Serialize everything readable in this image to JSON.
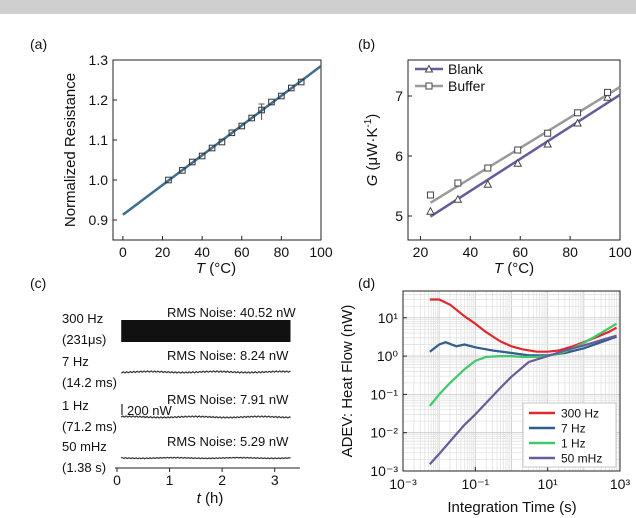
{
  "chart_data": [
    {
      "panel": "(a)",
      "type": "line",
      "xlabel": "T (°C)",
      "ylabel": "Normalized Resistance",
      "xlim": [
        -5,
        100
      ],
      "ylim": [
        0.85,
        1.3
      ],
      "xticks": [
        "0",
        "20",
        "40",
        "60",
        "80",
        "100"
      ],
      "yticks": [
        "0.9",
        "1.0",
        "1.1",
        "1.2",
        "1.3"
      ],
      "fit_line": {
        "x": [
          0,
          100
        ],
        "y": [
          0.913,
          1.285
        ],
        "color": "#3f6d8f"
      },
      "points": [
        {
          "x": 23,
          "y": 1.0
        },
        {
          "x": 30,
          "y": 1.024
        },
        {
          "x": 35,
          "y": 1.045
        },
        {
          "x": 40,
          "y": 1.06
        },
        {
          "x": 45,
          "y": 1.08
        },
        {
          "x": 50,
          "y": 1.095
        },
        {
          "x": 55,
          "y": 1.118
        },
        {
          "x": 60,
          "y": 1.135
        },
        {
          "x": 65,
          "y": 1.155
        },
        {
          "x": 70,
          "y": 1.175
        },
        {
          "x": 75,
          "y": 1.195
        },
        {
          "x": 80,
          "y": 1.21
        },
        {
          "x": 85,
          "y": 1.23
        },
        {
          "x": 90,
          "y": 1.245
        }
      ],
      "error_bar": {
        "x": 70,
        "low": 1.15,
        "high": 1.19
      }
    },
    {
      "panel": "(b)",
      "type": "scatter",
      "xlabel": "T (°C)",
      "ylabel": "G (μW·K⁻¹)",
      "xlim": [
        15,
        100
      ],
      "ylim": [
        4.6,
        7.6
      ],
      "xticks": [
        "20",
        "40",
        "60",
        "80",
        "100"
      ],
      "yticks": [
        "5",
        "6",
        "7"
      ],
      "legend_position": "top-left",
      "series": [
        {
          "name": "Blank",
          "marker": "triangle",
          "color": "#6a5a9c",
          "x": [
            24,
            35,
            47,
            59,
            71,
            83,
            95
          ],
          "y": [
            5.08,
            5.28,
            5.53,
            5.88,
            6.2,
            6.55,
            6.98
          ],
          "fit": {
            "x": [
              24,
              100
            ],
            "y": [
              4.99,
              7.02
            ]
          }
        },
        {
          "name": "Buffer",
          "marker": "square",
          "color": "#9a9a9a",
          "x": [
            24,
            35,
            47,
            59,
            71,
            83,
            95
          ],
          "y": [
            5.35,
            5.55,
            5.8,
            6.1,
            6.38,
            6.72,
            7.06
          ],
          "fit": {
            "x": [
              24,
              100
            ],
            "y": [
              5.22,
              7.15
            ]
          }
        }
      ]
    },
    {
      "panel": "(c)",
      "type": "line",
      "xlabel": "t (h)",
      "xlim": [
        0,
        3.5
      ],
      "xticks": [
        "0",
        "1",
        "2",
        "3"
      ],
      "scale_bar": "200 nW",
      "traces": [
        {
          "label": "300 Hz",
          "sublabel": "(231μs)",
          "noise": "RMS Noise: 40.52 nW",
          "amplitude": 40.52
        },
        {
          "label": "7 Hz",
          "sublabel": "(14.2 ms)",
          "noise": "RMS Noise: 8.24 nW",
          "amplitude": 8.24
        },
        {
          "label": "1 Hz",
          "sublabel": "(71.2 ms)",
          "noise": "RMS Noise: 7.91 nW",
          "amplitude": 7.91
        },
        {
          "label": "50 mHz",
          "sublabel": "(1.38 s)",
          "noise": "RMS Noise: 5.29 nW",
          "amplitude": 5.29
        }
      ]
    },
    {
      "panel": "(d)",
      "type": "line",
      "xlabel": "Integration Time (s)",
      "ylabel": "ADEV: Heat Flow (nW)",
      "xscale": "log",
      "yscale": "log",
      "xlim": [
        0.001,
        1000
      ],
      "ylim": [
        0.001,
        50
      ],
      "xticks": [
        "10⁻³",
        "10⁻¹",
        "10¹",
        "10³"
      ],
      "yticks": [
        "10⁻³",
        "10⁻²",
        "10⁻¹",
        "10⁰",
        "10¹"
      ],
      "grid": true,
      "legend_position": "bottom-right",
      "series": [
        {
          "name": "300 Hz",
          "color": "#e0282e",
          "x": [
            0.0055,
            0.01,
            0.02,
            0.05,
            0.1,
            0.2,
            0.5,
            1,
            2,
            5,
            10,
            20,
            50,
            100,
            200,
            500,
            800
          ],
          "y": [
            30,
            30,
            22,
            11,
            7,
            4.2,
            2.4,
            1.8,
            1.5,
            1.3,
            1.3,
            1.4,
            1.8,
            2.3,
            3,
            4.3,
            5.5
          ]
        },
        {
          "name": "7 Hz",
          "color": "#2f5f8a",
          "x": [
            0.0055,
            0.01,
            0.015,
            0.03,
            0.05,
            0.1,
            0.3,
            1,
            3,
            10,
            30,
            100,
            300,
            800
          ],
          "y": [
            1.3,
            2.0,
            2.3,
            1.8,
            2.0,
            1.7,
            1.4,
            1.2,
            1.05,
            1.05,
            1.2,
            1.6,
            2.3,
            3.2
          ]
        },
        {
          "name": "1 Hz",
          "color": "#3ec96b",
          "x": [
            0.0055,
            0.01,
            0.02,
            0.05,
            0.1,
            0.2,
            0.5,
            1,
            2,
            5,
            10,
            30,
            100,
            300,
            800
          ],
          "y": [
            0.05,
            0.1,
            0.2,
            0.45,
            0.75,
            0.95,
            1.0,
            1.0,
            0.95,
            0.95,
            1.0,
            1.3,
            2.2,
            4,
            7
          ]
        },
        {
          "name": "50 mHz",
          "color": "#6a5a9c",
          "x": [
            0.0055,
            0.01,
            0.05,
            0.1,
            0.5,
            1,
            3,
            10,
            30,
            100,
            300,
            800
          ],
          "y": [
            0.0015,
            0.0028,
            0.016,
            0.03,
            0.15,
            0.29,
            0.7,
            1.0,
            1.4,
            1.9,
            2.6,
            3.4
          ]
        }
      ]
    }
  ]
}
